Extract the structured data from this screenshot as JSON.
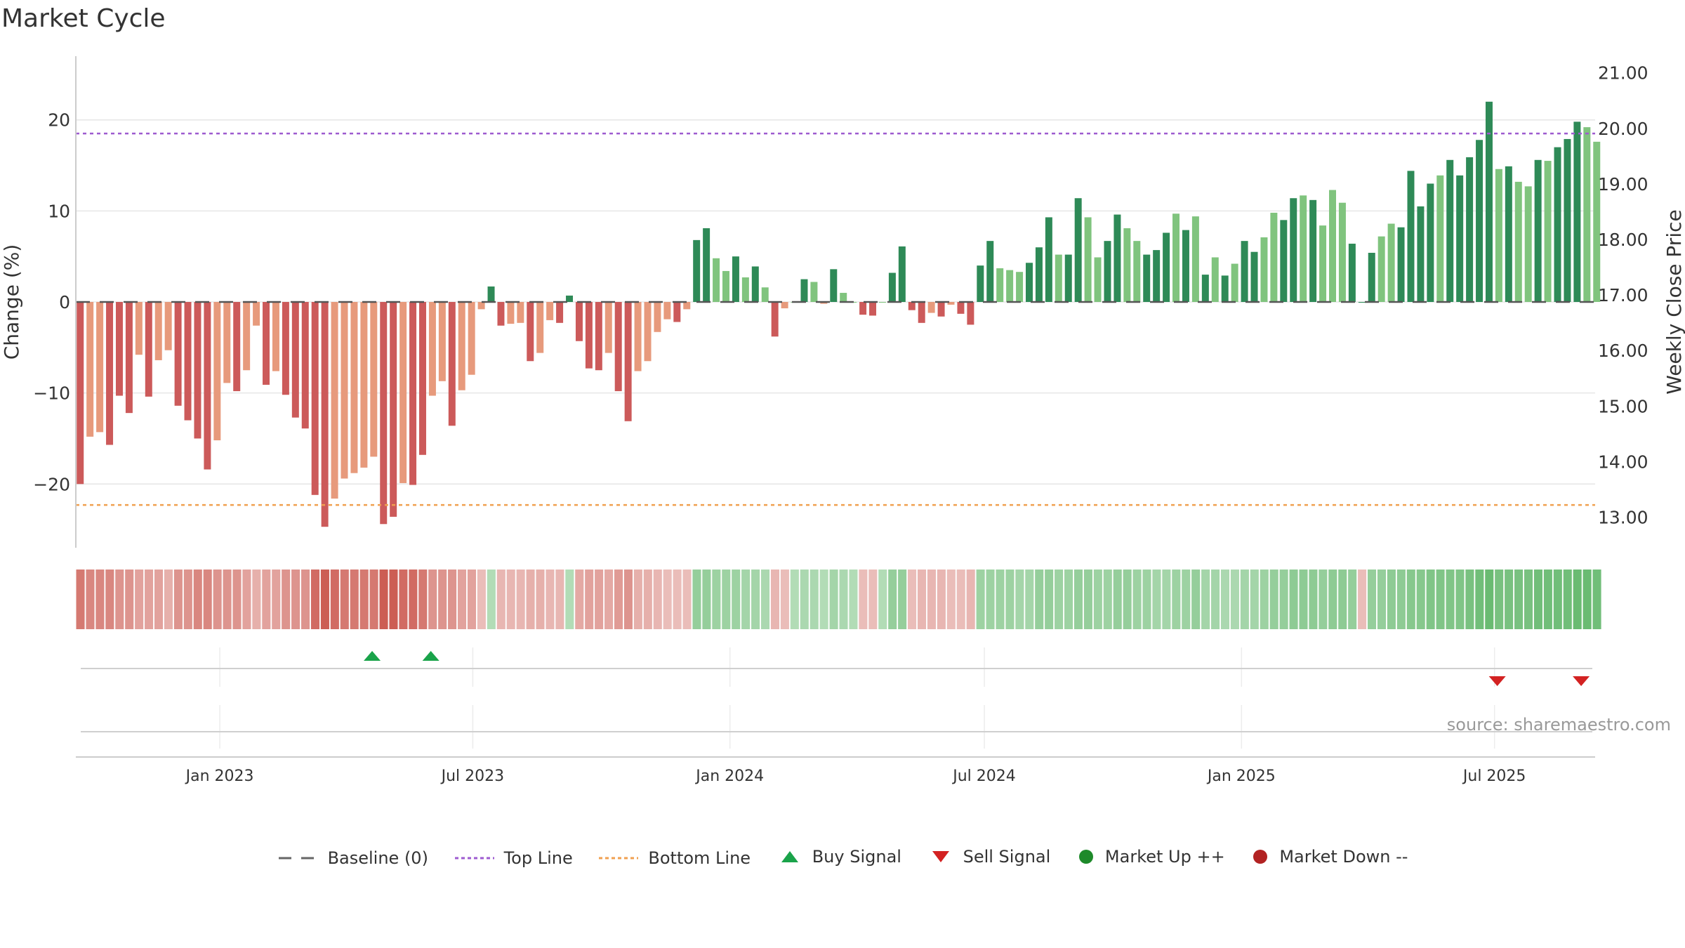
{
  "chart_data": {
    "type": "bar",
    "title": "Market Cycle",
    "ylabel": "Change (%)",
    "y2label": "Weekly Close Price",
    "ylim": [
      -27,
      27
    ],
    "y2lim": [
      12.45,
      21.3
    ],
    "y_ticks": [
      "20",
      "10",
      "0",
      "−10",
      "−20"
    ],
    "y2_ticks": [
      "21.00",
      "20.00",
      "19.00",
      "18.00",
      "17.00",
      "16.00",
      "15.00",
      "14.00",
      "13.00"
    ],
    "x_ticks": [
      "Jan 2023",
      "Jul 2023",
      "Jan 2024",
      "Jul 2024",
      "Jan 2025",
      "Jul 2025"
    ],
    "x_range": [
      "2022-09-20",
      "2025-09-11"
    ],
    "top_line": 18.5,
    "bottom_line": -22.3,
    "baseline": 0,
    "source": "source: sharemaestro.com",
    "colors": {
      "up_strong": "#2e8a57",
      "up_weak": "#80c47e",
      "down_strong": "#cc5a5a",
      "down_weak": "#e79a7c",
      "top_line": "#9e5bd0",
      "bottom_line": "#f0a050",
      "buy": "#1aa34a",
      "sell": "#d32222",
      "market_up": "#1e8a2a",
      "market_down": "#b22222"
    },
    "weeks": {
      "start_date": "2022-09-20",
      "interval_days": 7,
      "values": [
        -20.0,
        -14.8,
        -14.3,
        -15.7,
        -10.3,
        -12.2,
        -5.8,
        -10.4,
        -6.4,
        -5.3,
        -11.4,
        -13.0,
        -15.0,
        -18.4,
        -15.2,
        -8.9,
        -9.8,
        -7.5,
        -2.6,
        -9.1,
        -7.6,
        -10.2,
        -12.7,
        -13.9,
        -21.2,
        -24.7,
        -21.6,
        -19.4,
        -18.8,
        -18.2,
        -17.0,
        -24.4,
        -23.6,
        -19.9,
        -20.1,
        -16.8,
        -10.3,
        -8.7,
        -13.6,
        -9.7,
        -8.0,
        -0.8,
        1.7,
        -2.6,
        -2.4,
        -2.3,
        -6.5,
        -5.6,
        -2.0,
        -2.3,
        0.7,
        -4.3,
        -7.3,
        -7.5,
        -5.6,
        -9.8,
        -13.1,
        -7.6,
        -6.5,
        -3.3,
        -1.9,
        -2.2,
        -0.8,
        6.8,
        8.1,
        4.8,
        3.4,
        5.0,
        2.7,
        3.9,
        1.6,
        -3.8,
        -0.7,
        0.0,
        2.5,
        2.2,
        -0.2,
        3.6,
        1.0,
        0.0,
        -1.4,
        -1.5,
        0.0,
        3.2,
        6.1,
        -0.9,
        -2.3,
        -1.2,
        -1.6,
        -0.3,
        -1.3,
        -2.5,
        4.0,
        6.7,
        3.7,
        3.5,
        3.3,
        4.3,
        6.0,
        9.3,
        5.2,
        5.2,
        11.4,
        9.3,
        4.9,
        6.7,
        9.6,
        8.1,
        6.7,
        5.2,
        5.7,
        7.6,
        9.7,
        7.9,
        9.4,
        3.0,
        4.9,
        2.9,
        4.2,
        6.7,
        5.5,
        7.1,
        9.8,
        9.0,
        11.4,
        11.7,
        11.2,
        8.4,
        12.3,
        10.9,
        6.4,
        0.0,
        5.4,
        7.2,
        8.6,
        8.2,
        14.4,
        10.5,
        13.0,
        13.9,
        15.6,
        13.9,
        15.9,
        17.8,
        22.0,
        14.6,
        14.9,
        13.2,
        12.7,
        15.6,
        15.5,
        17.0,
        17.9,
        19.8,
        19.2,
        17.6
      ],
      "strong": [
        1,
        0,
        0,
        1,
        1,
        1,
        0,
        1,
        0,
        0,
        1,
        1,
        1,
        1,
        0,
        0,
        1,
        0,
        0,
        1,
        0,
        1,
        1,
        1,
        1,
        1,
        0,
        0,
        0,
        0,
        0,
        1,
        1,
        0,
        1,
        1,
        0,
        0,
        1,
        0,
        0,
        0,
        1,
        1,
        0,
        0,
        1,
        0,
        0,
        1,
        1,
        1,
        1,
        1,
        0,
        1,
        1,
        0,
        0,
        0,
        0,
        1,
        0,
        1,
        1,
        0,
        0,
        1,
        0,
        1,
        0,
        1,
        0,
        0,
        1,
        0,
        0,
        1,
        0,
        0,
        1,
        1,
        0,
        1,
        1,
        1,
        1,
        0,
        1,
        0,
        1,
        1,
        1,
        1,
        0,
        0,
        0,
        1,
        1,
        1,
        0,
        1,
        1,
        0,
        0,
        1,
        1,
        0,
        0,
        1,
        1,
        1,
        0,
        1,
        0,
        1,
        0,
        1,
        0,
        1,
        1,
        0,
        0,
        1,
        1,
        0,
        1,
        0,
        0,
        0,
        1,
        1,
        1,
        0,
        0,
        1,
        1,
        1,
        1,
        0,
        1,
        1,
        1,
        1,
        1,
        0,
        1,
        0,
        0,
        1,
        0,
        1,
        1,
        1,
        0,
        0
      ],
      "heat": [
        -0.7,
        -0.6,
        -0.6,
        -0.6,
        -0.5,
        -0.5,
        -0.4,
        -0.4,
        -0.4,
        -0.3,
        -0.5,
        -0.5,
        -0.6,
        -0.6,
        -0.5,
        -0.5,
        -0.5,
        -0.4,
        -0.3,
        -0.4,
        -0.4,
        -0.5,
        -0.5,
        -0.5,
        -0.8,
        -0.9,
        -0.8,
        -0.7,
        -0.7,
        -0.7,
        -0.7,
        -0.9,
        -0.9,
        -0.8,
        -0.8,
        -0.7,
        -0.5,
        -0.5,
        -0.5,
        -0.4,
        -0.4,
        -0.2,
        0.25,
        -0.25,
        -0.25,
        -0.25,
        -0.3,
        -0.3,
        -0.25,
        -0.25,
        0.25,
        -0.35,
        -0.4,
        -0.4,
        -0.35,
        -0.45,
        -0.5,
        -0.3,
        -0.3,
        -0.25,
        -0.2,
        -0.2,
        -0.2,
        0.45,
        0.45,
        0.4,
        0.4,
        0.4,
        0.35,
        0.35,
        0.3,
        -0.25,
        -0.2,
        0.25,
        0.3,
        0.3,
        0.25,
        0.35,
        0.3,
        0.25,
        -0.2,
        -0.2,
        0.25,
        0.45,
        0.45,
        -0.2,
        -0.25,
        -0.25,
        -0.25,
        -0.2,
        -0.2,
        -0.25,
        0.4,
        0.4,
        0.4,
        0.4,
        0.35,
        0.35,
        0.45,
        0.45,
        0.4,
        0.4,
        0.45,
        0.45,
        0.4,
        0.4,
        0.45,
        0.45,
        0.4,
        0.4,
        0.35,
        0.35,
        0.4,
        0.4,
        0.45,
        0.35,
        0.35,
        0.3,
        0.3,
        0.35,
        0.35,
        0.4,
        0.45,
        0.45,
        0.5,
        0.5,
        0.5,
        0.45,
        0.5,
        0.5,
        0.45,
        -0.2,
        0.45,
        0.45,
        0.5,
        0.5,
        0.55,
        0.55,
        0.6,
        0.6,
        0.6,
        0.6,
        0.65,
        0.7,
        0.75,
        0.65,
        0.65,
        0.65,
        0.65,
        0.7,
        0.7,
        0.7,
        0.7,
        0.75,
        0.75,
        0.7
      ]
    },
    "buy_signals": [
      "2023-04-20",
      "2023-06-01"
    ],
    "sell_signals": [
      "2025-07-03",
      "2025-09-01"
    ]
  },
  "legend": [
    {
      "label": "Baseline (0)",
      "icon": "baseline-dash"
    },
    {
      "label": "Top Line",
      "icon": "top-line-dotted"
    },
    {
      "label": "Bottom Line",
      "icon": "bottom-line-dotted"
    },
    {
      "label": "Buy Signal",
      "icon": "triangle-up-green"
    },
    {
      "label": "Sell Signal",
      "icon": "triangle-down-red"
    },
    {
      "label": "Market Up ++",
      "icon": "dot-green"
    },
    {
      "label": "Market Down --",
      "icon": "dot-red"
    }
  ]
}
